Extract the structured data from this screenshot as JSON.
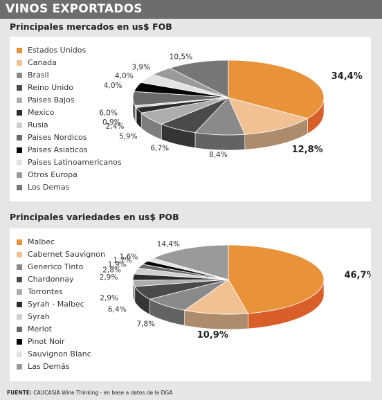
{
  "header": {
    "title": "VINOS EXPORTADOS"
  },
  "footer": {
    "label": "FUENTE:",
    "text": "CAUCASIA Wine Thinking - en base a datos de la DGA"
  },
  "chart_data": [
    {
      "type": "pie",
      "title": "Principales mercados en us$ FOB",
      "legend_position": "left",
      "categories": [
        "Estados Unidos",
        "Canada",
        "Brasil",
        "Reino Unido",
        "Paises Bajos",
        "Mexico",
        "Rusia",
        "Paises Nordicos",
        "Paises Asiaticos",
        "Paises Latinoamericanos",
        "Otros Europa",
        "Los Demas"
      ],
      "values": [
        34.4,
        12.8,
        8.4,
        6.7,
        5.9,
        2.4,
        0.9,
        6.0,
        4.0,
        4.0,
        3.9,
        10.5
      ],
      "labels": [
        "34,4%",
        "12,8%",
        "8,4%",
        "6,7%",
        "5,9%",
        "2,4%",
        "0,9%",
        "6,0%",
        "4,0%",
        "4,0%",
        "3,9%",
        "10,5%"
      ],
      "colors": [
        "#e8923a",
        "#f2c193",
        "#8a8a8a",
        "#4a4a4a",
        "#adadad",
        "#2c2c2c",
        "#cfcfcf",
        "#6a6a6a",
        "#050505",
        "#e3e3e3",
        "#9a9a9a",
        "#777777"
      ]
    },
    {
      "type": "pie",
      "title": "Principales variedades en us$ POB",
      "legend_position": "left",
      "categories": [
        "Malbec",
        "Cabernet Sauvignon",
        "Generico Tinto",
        "Chardonnay",
        "Torrontes",
        "Syrah - Malbec",
        "Syrah",
        "Merlot",
        "Pinot Noir",
        "Sauvignon Blanc",
        "Las Demás"
      ],
      "values": [
        46.7,
        10.9,
        7.8,
        6.4,
        2.9,
        2.9,
        2.8,
        1.9,
        1.7,
        1.6,
        14.4
      ],
      "labels": [
        "46,7%",
        "10,9%",
        "7,8%",
        "6,4%",
        "2,9%",
        "2,9%",
        "2,8%",
        "1,9%",
        "1,7%",
        "1,6%",
        "14,4%"
      ],
      "colors": [
        "#e8923a",
        "#f2c193",
        "#8a8a8a",
        "#4a4a4a",
        "#adadad",
        "#2c2c2c",
        "#cfcfcf",
        "#6a6a6a",
        "#050505",
        "#e3e3e3",
        "#9a9a9a"
      ]
    }
  ]
}
